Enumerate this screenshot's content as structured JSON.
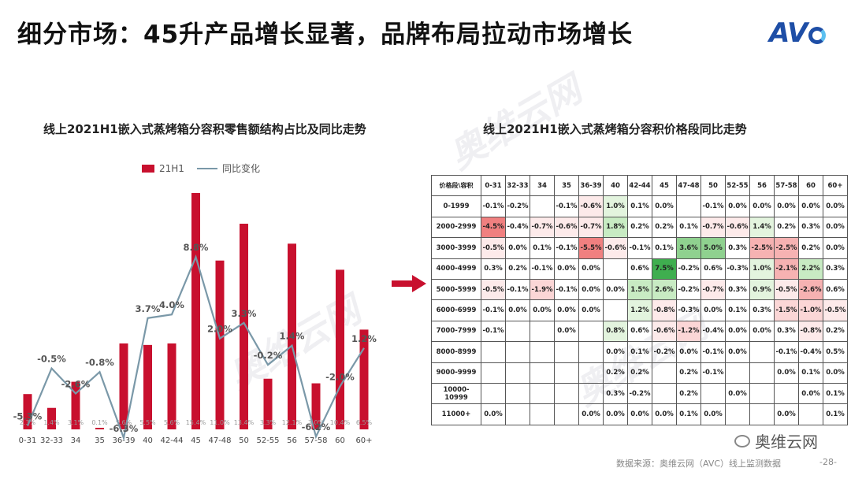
{
  "page": {
    "title": "细分市场：45升产品增长显著，品牌布局拉动市场增长",
    "logo": "AVC",
    "source": "数据来源：奥维云网（AVC）线上监测数据",
    "page_number": "-28-",
    "wechat": "奥维云网",
    "watermark": "奥维云网"
  },
  "chart_data": [
    {
      "type": "bar",
      "title": "线上2021H1嵌入式蒸烤箱分容积零售额结构占比及同比走势",
      "categories": [
        "0-31",
        "32-33",
        "34",
        "35",
        "36-39",
        "40",
        "42-44",
        "45",
        "47-48",
        "50",
        "52-55",
        "56",
        "57-58",
        "60",
        "60+"
      ],
      "series": [
        {
          "name": "21H1",
          "type": "bar",
          "color": "#c8102e",
          "values": [
            2.3,
            1.4,
            3.1,
            0.1,
            5.6,
            5.5,
            5.6,
            15.4,
            11.0,
            13.4,
            3.3,
            12.1,
            3.0,
            10.4,
            6.5
          ],
          "labels": [
            "2.3%",
            "1.4%",
            "3.1%",
            "0.1%",
            "5.6%",
            "5.5%",
            "5.6%",
            "15.4%",
            "11.0%",
            "13.4%",
            "3.3%",
            "12.1%",
            "3.0%",
            "10.4%",
            "6.5%"
          ]
        },
        {
          "name": "同比变化",
          "type": "line",
          "color": "#7a98a8",
          "values": [
            -5.3,
            -0.5,
            -2.6,
            -0.8,
            -6.3,
            3.7,
            4.0,
            8.8,
            2.0,
            3.3,
            -0.2,
            1.4,
            -6.2,
            -2.0,
            1.2
          ],
          "labels": [
            "-5.3%",
            "-0.5%",
            "-2.6%",
            "-0.8%",
            "-6.3%",
            "3.7%",
            "4.0%",
            "8.8%",
            "2.0%",
            "3.3%",
            "-0.2%",
            "1.4%",
            "-6.2%",
            "-2.0%",
            "1.2%"
          ]
        }
      ],
      "legend": "top-left"
    },
    {
      "type": "table",
      "title": "线上2021H1嵌入式蒸烤箱分容积价格段同比走势",
      "corner": "价格段\\容积",
      "columns": [
        "0-31",
        "32-33",
        "34",
        "35",
        "36-39",
        "40",
        "42-44",
        "45",
        "47-48",
        "50",
        "52-55",
        "56",
        "57-58",
        "60",
        "60+"
      ],
      "rows": [
        {
          "label": "0-1999",
          "cells": [
            "-0.1%",
            "-0.2%",
            "",
            "-0.1%",
            "-0.6%",
            "1.0%",
            "0.1%",
            "0.0%",
            "",
            "-0.1%",
            "0.0%",
            "0.0%",
            "0.0%",
            "0.0%",
            "0.0%"
          ]
        },
        {
          "label": "2000-2999",
          "cells": [
            "-4.5%",
            "-0.4%",
            "-0.7%",
            "-0.6%",
            "-0.7%",
            "1.8%",
            "0.2%",
            "0.2%",
            "0.1%",
            "-0.7%",
            "-0.6%",
            "1.4%",
            "0.2%",
            "0.3%",
            "0.0%"
          ]
        },
        {
          "label": "3000-3999",
          "cells": [
            "-0.5%",
            "0.0%",
            "0.1%",
            "-0.1%",
            "-5.5%",
            "-0.6%",
            "-0.1%",
            "0.1%",
            "3.6%",
            "5.0%",
            "0.3%",
            "-2.5%",
            "-2.5%",
            "0.2%",
            "0.0%"
          ]
        },
        {
          "label": "4000-4999",
          "cells": [
            "0.3%",
            "0.2%",
            "-0.1%",
            "0.0%",
            "0.0%",
            "",
            "0.6%",
            "7.5%",
            "-0.2%",
            "0.6%",
            "-0.3%",
            "1.0%",
            "-2.1%",
            "2.2%",
            "0.3%"
          ]
        },
        {
          "label": "5000-5999",
          "cells": [
            "-0.5%",
            "-0.1%",
            "-1.9%",
            "-0.1%",
            "0.0%",
            "0.0%",
            "1.5%",
            "2.6%",
            "-0.2%",
            "-0.7%",
            "0.3%",
            "0.9%",
            "-0.5%",
            "-2.6%",
            "0.6%"
          ]
        },
        {
          "label": "6000-6999",
          "cells": [
            "-0.1%",
            "0.0%",
            "0.0%",
            "0.0%",
            "0.0%",
            "",
            "1.2%",
            "-0.8%",
            "-0.3%",
            "0.0%",
            "0.1%",
            "0.3%",
            "-1.5%",
            "-1.0%",
            "-0.5%"
          ]
        },
        {
          "label": "7000-7999",
          "cells": [
            "-0.1%",
            "",
            "",
            "0.0%",
            "",
            "0.8%",
            "0.6%",
            "-0.6%",
            "-1.2%",
            "-0.4%",
            "0.0%",
            "0.0%",
            "0.3%",
            "-0.8%",
            "0.2%"
          ]
        },
        {
          "label": "8000-8999",
          "cells": [
            "",
            "",
            "",
            "",
            "",
            "0.0%",
            "0.1%",
            "-0.2%",
            "0.0%",
            "-0.1%",
            "0.0%",
            "",
            "-0.1%",
            "-0.4%",
            "0.5%"
          ]
        },
        {
          "label": "9000-9999",
          "cells": [
            "",
            "",
            "",
            "",
            "",
            "0.2%",
            "0.2%",
            "",
            "0.2%",
            "-0.1%",
            "",
            "",
            "0.0%",
            "0.1%",
            "0.0%"
          ]
        },
        {
          "label": "10000-10999",
          "cells": [
            "",
            "",
            "",
            "",
            "",
            "0.3%",
            "-0.2%",
            "",
            "0.2%",
            "",
            "0.0%",
            "",
            "",
            "0.0%",
            "0.1%"
          ]
        },
        {
          "label": "11000+",
          "cells": [
            "0.0%",
            "",
            "",
            "",
            "0.0%",
            "0.0%",
            "0.0%",
            "0.0%",
            "0.1%",
            "0.0%",
            "",
            "",
            "0.0%",
            "",
            "0.1%"
          ]
        }
      ]
    }
  ]
}
